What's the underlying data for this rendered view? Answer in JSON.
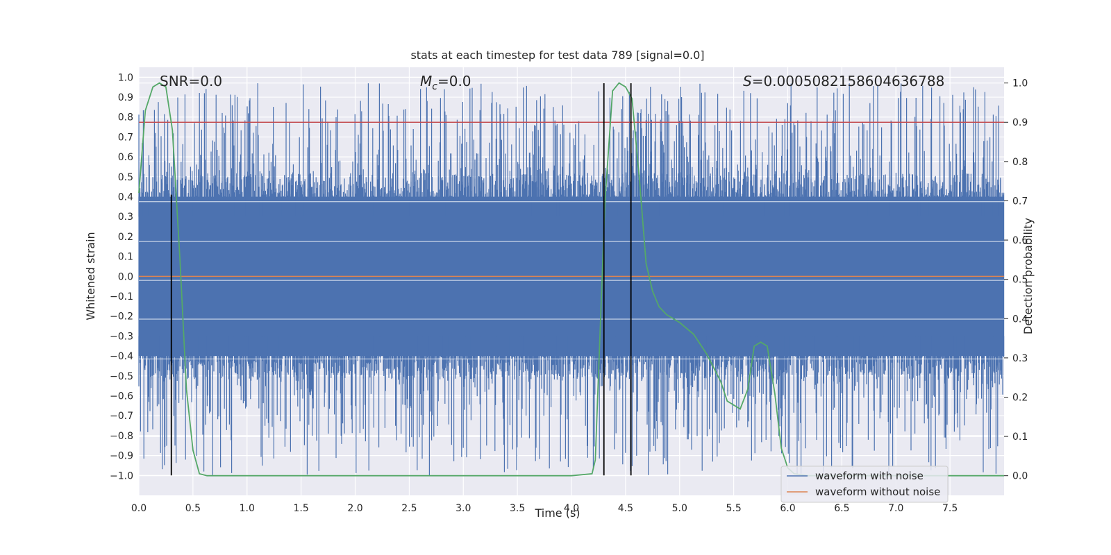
{
  "chart_data": {
    "type": "line",
    "title": "stats at each timestep for test data 789 [signal=0.0]",
    "xlabel": "Time (s)",
    "ylabel": "Whitened strain",
    "y2label": "Detection probability",
    "xlim": [
      0.0,
      8.0
    ],
    "ylim": [
      -1.1,
      1.05
    ],
    "y2lim": [
      -0.05,
      1.04
    ],
    "x_ticks": [
      "0.0",
      "0.5",
      "1.0",
      "1.5",
      "2.0",
      "2.5",
      "3.0",
      "3.5",
      "4.0",
      "4.5",
      "5.0",
      "5.5",
      "6.0",
      "6.5",
      "7.0",
      "7.5"
    ],
    "y_ticks": [
      "1.0",
      "0.9",
      "0.8",
      "0.7",
      "0.6",
      "0.5",
      "0.4",
      "0.3",
      "0.2",
      "0.1",
      "0.0",
      "-0.1",
      "-0.2",
      "-0.3",
      "-0.4",
      "-0.5",
      "-0.6",
      "-0.7",
      "-0.8",
      "-0.9",
      "-1.0"
    ],
    "y2_ticks": [
      "1.0",
      "0.9",
      "0.8",
      "0.7",
      "0.6",
      "0.5",
      "0.4",
      "0.3",
      "0.2",
      "0.1",
      "0.0"
    ],
    "grid": true,
    "colors": {
      "background": "#eaeaf2",
      "grid": "#ffffff",
      "noisy": "#4c72b0",
      "clean": "#dd8452",
      "probability": "#55a868",
      "threshold": "#c44e52",
      "marker": "#000000"
    },
    "series": [
      {
        "name": "waveform with noise",
        "kind": "noise band",
        "core_range": [
          -0.4,
          0.4
        ],
        "peak_range": [
          -1.0,
          0.97
        ]
      },
      {
        "name": "waveform without noise",
        "x": [
          0.0,
          8.0
        ],
        "values": [
          0.0,
          0.0
        ]
      },
      {
        "name": "detection probability",
        "axis": "right",
        "x": [
          0.0,
          0.06,
          0.13,
          0.19,
          0.25,
          0.31,
          0.38,
          0.44,
          0.5,
          0.56,
          0.63,
          0.69,
          1.0,
          2.0,
          3.0,
          4.0,
          4.19,
          4.22,
          4.31,
          4.38,
          4.44,
          4.5,
          4.56,
          4.63,
          4.69,
          4.75,
          4.81,
          4.88,
          5.0,
          5.13,
          5.25,
          5.38,
          5.44,
          5.5,
          5.56,
          5.63,
          5.69,
          5.75,
          5.81,
          5.88,
          5.94,
          6.0,
          6.06,
          6.19,
          6.25,
          7.0,
          8.0
        ],
        "values": [
          0.72,
          0.93,
          0.99,
          1.0,
          0.99,
          0.88,
          0.55,
          0.22,
          0.065,
          0.005,
          0.0,
          0.0,
          0.0,
          0.0,
          0.0,
          0.0,
          0.005,
          0.04,
          0.7,
          0.98,
          1.0,
          0.99,
          0.96,
          0.75,
          0.54,
          0.47,
          0.43,
          0.41,
          0.39,
          0.36,
          0.31,
          0.24,
          0.19,
          0.18,
          0.17,
          0.22,
          0.33,
          0.34,
          0.33,
          0.21,
          0.07,
          0.02,
          0.005,
          0.0,
          0.0,
          0.0,
          0.0
        ]
      }
    ],
    "threshold": 0.9,
    "marker_lines": [
      {
        "x": 0.3,
        "ymin": -1.0,
        "ymax": 0.41
      },
      {
        "x": 4.3,
        "ymin": -1.0,
        "ymax": 0.97
      },
      {
        "x": 4.55,
        "ymin": -1.0,
        "ymax": 0.97
      }
    ],
    "annotations": {
      "snr": "SNR=0.0",
      "mc_symbol": "M",
      "mc_subscript": "c",
      "mc_value": "=0.0",
      "s_symbol": "S",
      "s_value": "=0.0005082158604636788"
    },
    "legend": {
      "placement": "lower-right",
      "entries": [
        "waveform with noise",
        "waveform without noise"
      ]
    }
  }
}
